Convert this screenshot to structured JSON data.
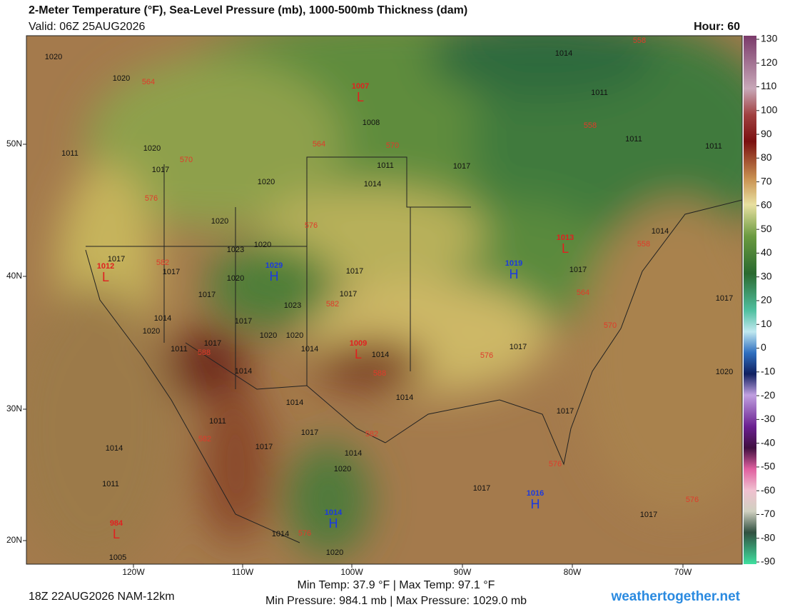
{
  "header": {
    "title": "2-Meter Temperature (°F), Sea-Level Pressure (mb), 1000-500mb Thickness (dam)",
    "valid": "Valid: 06Z 25AUG2026",
    "hour": "Hour: 60"
  },
  "map": {
    "lat_labels": [
      "50N",
      "40N",
      "30N",
      "20N"
    ],
    "lon_labels": [
      "120W",
      "110W",
      "100W",
      "90W",
      "80W",
      "70W"
    ],
    "pressure_labels": [
      "1020",
      "1020",
      "1020",
      "1011",
      "1017",
      "1020",
      "1014",
      "1011",
      "1017",
      "1014",
      "1011",
      "1011",
      "1011",
      "1020",
      "1023",
      "1020",
      "1017",
      "1017",
      "1020",
      "1017",
      "1017",
      "1023",
      "1017",
      "1014",
      "1020",
      "1017",
      "1020",
      "1020",
      "1017",
      "1014",
      "1011",
      "1014",
      "1014",
      "1014",
      "1014",
      "1017",
      "1017",
      "1014",
      "1017",
      "1020",
      "1017",
      "1017",
      "1017",
      "1014",
      "1020",
      "1011",
      "1014",
      "1011",
      "1005",
      "1017",
      "1017",
      "1014",
      "1020",
      "1008"
    ],
    "thickness_labels": [
      "564",
      "564",
      "570",
      "570",
      "576",
      "576",
      "582",
      "582",
      "588",
      "588",
      "582",
      "582",
      "576",
      "576",
      "570",
      "564",
      "558",
      "558",
      "558",
      "576",
      "576"
    ],
    "highs": [
      {
        "letter": "H",
        "value": "1029"
      },
      {
        "letter": "H",
        "value": "1019"
      },
      {
        "letter": "H",
        "value": "1016"
      },
      {
        "letter": "H",
        "value": "1014"
      }
    ],
    "lows": [
      {
        "letter": "L",
        "value": "1007"
      },
      {
        "letter": "L",
        "value": "1012"
      },
      {
        "letter": "L",
        "value": "1009"
      },
      {
        "letter": "L",
        "value": "1013"
      },
      {
        "letter": "L",
        "value": "984"
      }
    ]
  },
  "colorbar": {
    "ticks": [
      130,
      120,
      110,
      100,
      90,
      80,
      70,
      60,
      50,
      40,
      30,
      20,
      10,
      0,
      -10,
      -20,
      -30,
      -40,
      -50,
      -60,
      -70,
      -80,
      -90
    ]
  },
  "footer": {
    "run": "18Z 22AUG2026 NAM-12km",
    "stats": [
      "Min Temp: 37.9 °F | Max Temp: 97.1 °F",
      "Min Pressure: 984.1 mb | Max Pressure: 1029.0 mb"
    ],
    "site": "weathertogether.net"
  }
}
